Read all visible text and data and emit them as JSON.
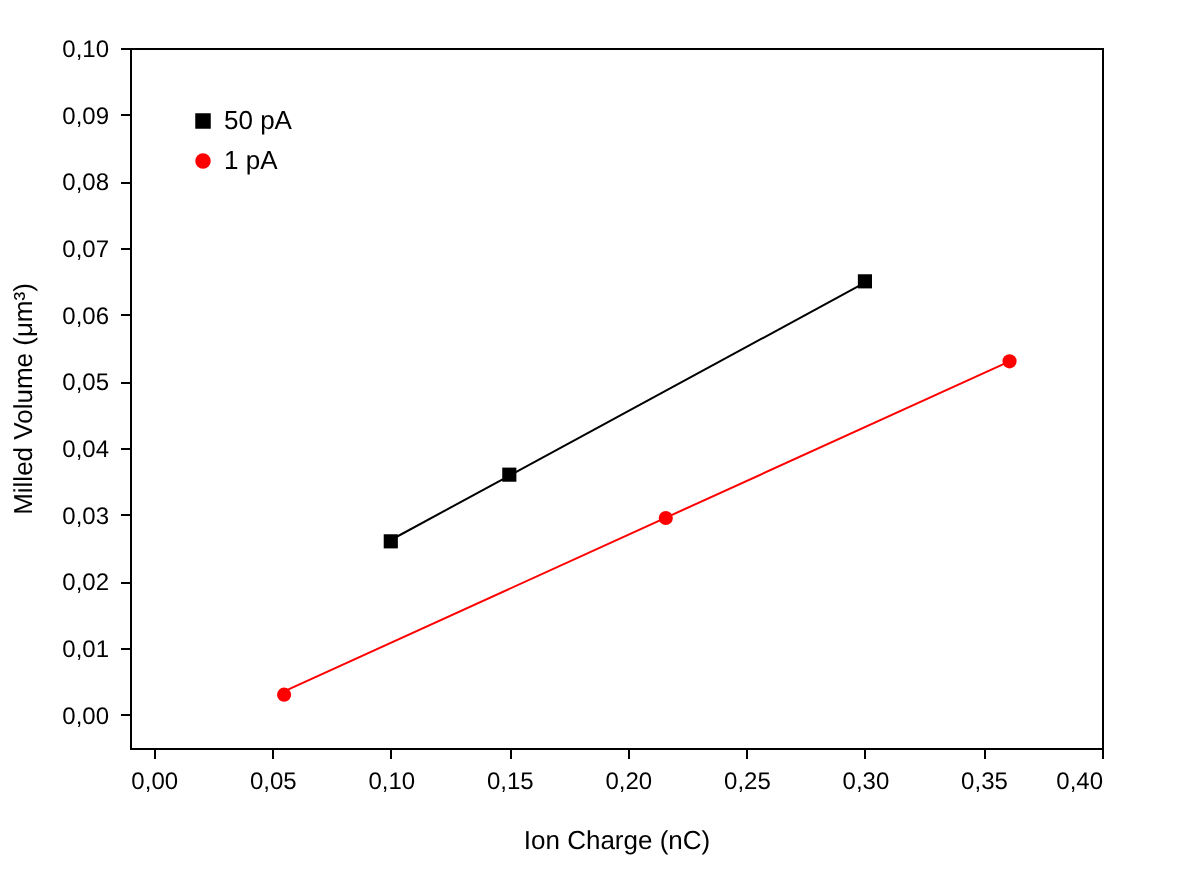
{
  "chart_data": {
    "type": "scatter",
    "xlabel": "Ion Charge (nC)",
    "ylabel": "Milled Volume (μm³)",
    "xlim": [
      -0.01,
      0.4
    ],
    "ylim": [
      -0.005,
      0.1
    ],
    "xticks": [
      {
        "value": 0,
        "label": "0,00"
      },
      {
        "value": 0.05,
        "label": "0,05"
      },
      {
        "value": 0.1,
        "label": "0,10"
      },
      {
        "value": 0.15,
        "label": "0,15"
      },
      {
        "value": 0.2,
        "label": "0,20"
      },
      {
        "value": 0.25,
        "label": "0,25"
      },
      {
        "value": 0.3,
        "label": "0,30"
      },
      {
        "value": 0.35,
        "label": "0,35"
      },
      {
        "value": 0.4,
        "label": "0,40"
      }
    ],
    "yticks": [
      {
        "value": 0,
        "label": "0,00"
      },
      {
        "value": 0.01,
        "label": "0,01"
      },
      {
        "value": 0.02,
        "label": "0,02"
      },
      {
        "value": 0.03,
        "label": "0,03"
      },
      {
        "value": 0.04,
        "label": "0,04"
      },
      {
        "value": 0.05,
        "label": "0,05"
      },
      {
        "value": 0.06,
        "label": "0,06"
      },
      {
        "value": 0.07,
        "label": "0,07"
      },
      {
        "value": 0.08,
        "label": "0,08"
      },
      {
        "value": 0.09,
        "label": "0,09"
      },
      {
        "value": 0.1,
        "label": "0,10"
      }
    ],
    "legend": "top left",
    "grid": false,
    "series": [
      {
        "name": "50 pA",
        "marker": "square",
        "color": "#000000",
        "x": [
          0.1,
          0.15,
          0.3
        ],
        "values": [
          0.026,
          0.036,
          0.065
        ]
      },
      {
        "name": "1 pA",
        "marker": "circle",
        "color": "#ff0000",
        "x": [
          0.055,
          0.216,
          0.361
        ],
        "values": [
          0.003,
          0.0295,
          0.053
        ]
      },
      {
        "type": "line",
        "color": "#000000",
        "x": [
          0.1,
          0.3
        ],
        "values": [
          0.0262,
          0.0648
        ]
      },
      {
        "type": "line",
        "color": "#ff0000",
        "x": [
          0.055,
          0.361
        ],
        "values": [
          0.0035,
          0.053
        ]
      }
    ]
  }
}
